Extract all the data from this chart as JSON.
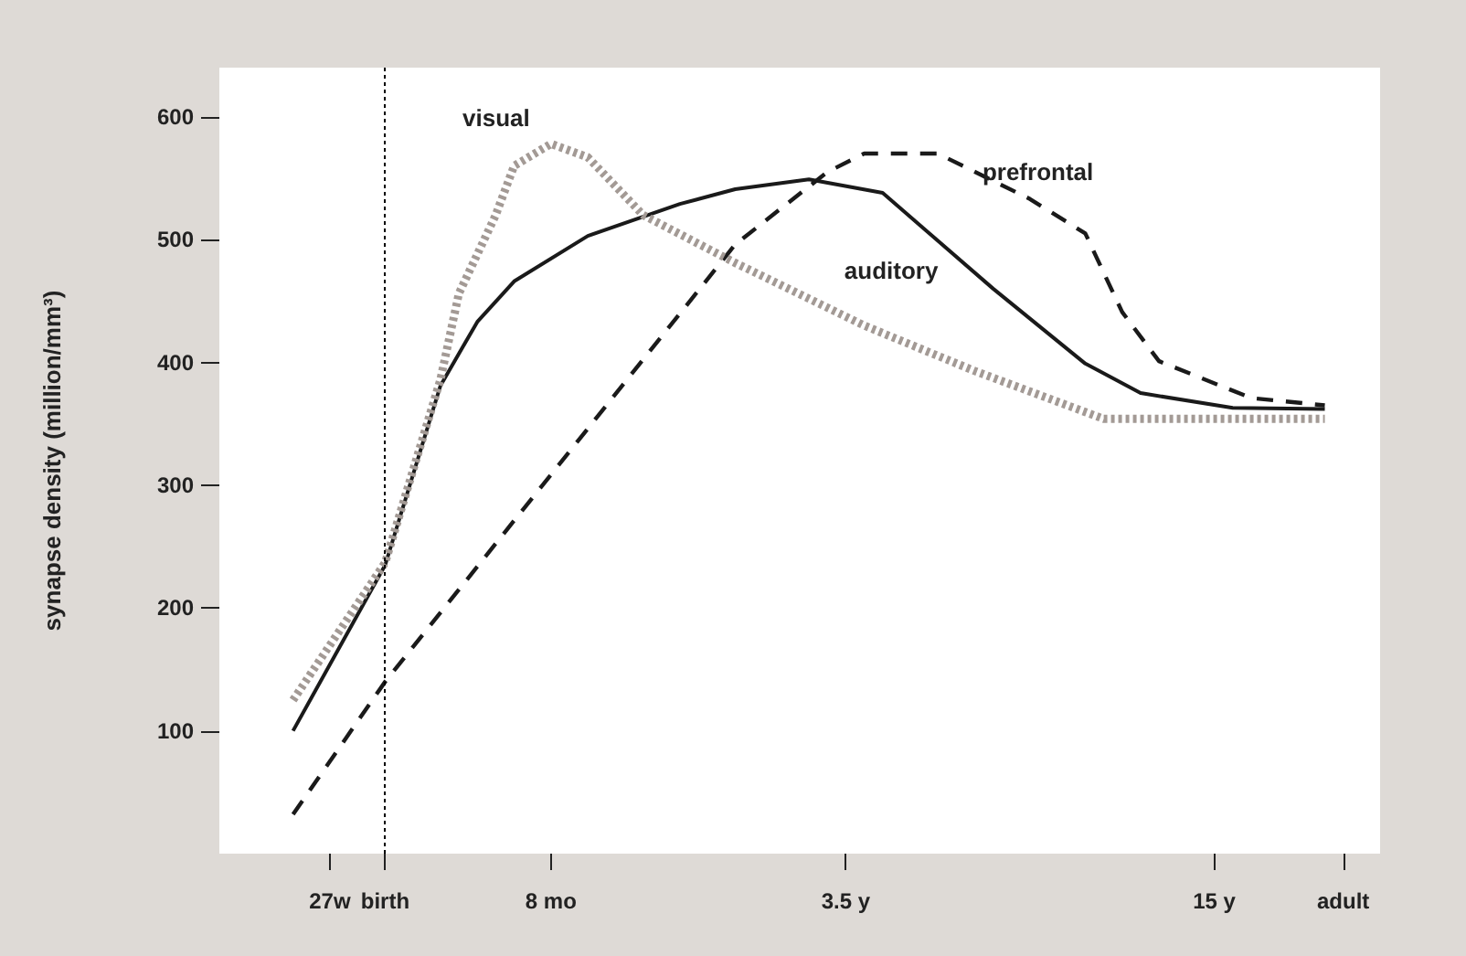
{
  "chart_data": {
    "type": "line",
    "ylabel": "synapse density (million/mm³)",
    "categories": [
      null,
      null,
      null,
      null,
      null,
      null,
      "27w",
      null,
      null,
      "birth",
      null,
      null,
      null,
      null,
      null,
      null,
      null,
      null,
      "8 mo",
      null,
      null,
      null,
      null,
      null,
      null,
      null,
      null,
      null,
      null,
      null,
      null,
      null,
      null,
      null,
      "3.5 y",
      null,
      null,
      null,
      null,
      null,
      null,
      null,
      null,
      null,
      null,
      null,
      null,
      null,
      null,
      null,
      null,
      null,
      null,
      null,
      "15 y",
      null,
      null,
      null,
      null,
      null,
      null,
      "adult",
      null,
      null
    ],
    "ylim": [
      0,
      640
    ],
    "yticks": [
      100,
      200,
      300,
      400,
      500,
      600
    ],
    "grid": false,
    "legend": false,
    "marker": "none",
    "ref_lines": [
      {
        "axis": "x",
        "value": "birth",
        "line_style": "dotted",
        "color": "#000000"
      }
    ],
    "series": [
      {
        "name": "visual",
        "color": "#a39a95",
        "line_style": "dotted",
        "values": [
          null,
          null,
          null,
          null,
          125,
          null,
          null,
          null,
          null,
          237,
          null,
          null,
          386,
          456,
          null,
          520,
          560,
          null,
          578,
          null,
          567,
          null,
          null,
          520,
          null,
          null,
          null,
          null,
          481,
          null,
          null,
          null,
          null,
          null,
          null,
          430,
          null,
          null,
          null,
          null,
          null,
          393,
          null,
          null,
          null,
          null,
          null,
          null,
          354,
          null,
          null,
          null,
          null,
          null,
          null,
          null,
          null,
          null,
          null,
          null,
          354,
          null,
          null,
          null
        ]
      },
      {
        "name": "auditory",
        "color": "#1a1a1a",
        "line_style": "solid",
        "values": [
          null,
          null,
          null,
          null,
          100,
          null,
          null,
          null,
          null,
          235,
          null,
          null,
          381,
          null,
          433,
          null,
          466,
          null,
          null,
          null,
          503,
          null,
          null,
          null,
          null,
          529,
          null,
          null,
          541,
          null,
          null,
          null,
          549,
          null,
          null,
          null,
          538,
          null,
          512,
          null,
          null,
          null,
          460,
          null,
          null,
          null,
          null,
          399,
          null,
          null,
          375,
          null,
          null,
          null,
          null,
          363,
          null,
          null,
          null,
          null,
          362,
          null,
          null,
          null
        ]
      },
      {
        "name": "prefrontal",
        "color": "#1a1a1a",
        "line_style": "dashed",
        "values": [
          null,
          null,
          null,
          null,
          32,
          null,
          null,
          null,
          null,
          140,
          null,
          null,
          null,
          null,
          null,
          null,
          null,
          null,
          null,
          null,
          null,
          null,
          null,
          null,
          null,
          null,
          null,
          null,
          496,
          null,
          null,
          null,
          null,
          555,
          null,
          570,
          null,
          null,
          null,
          570,
          null,
          null,
          null,
          null,
          533,
          null,
          null,
          505,
          null,
          441,
          null,
          401,
          null,
          389,
          null,
          null,
          371,
          null,
          null,
          null,
          365,
          null,
          null,
          null
        ]
      }
    ]
  }
}
